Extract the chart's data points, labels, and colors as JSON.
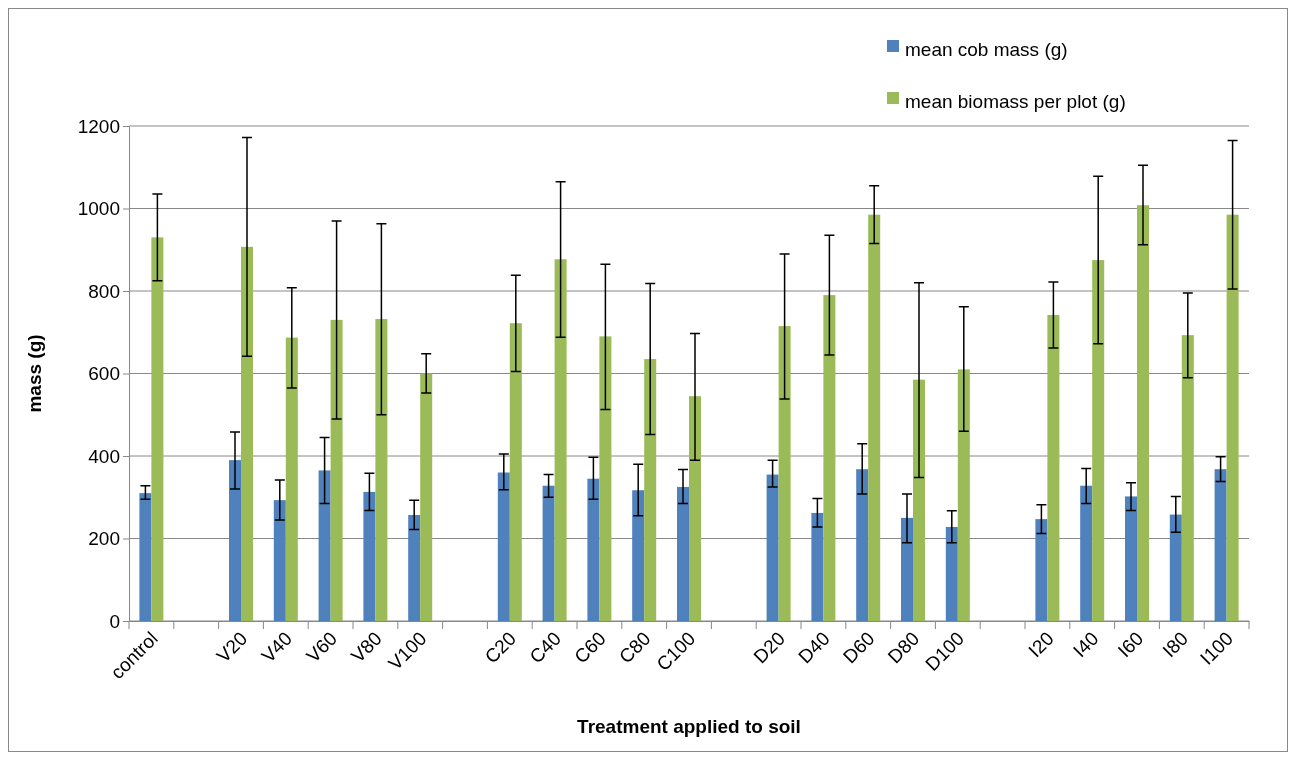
{
  "chart_data": {
    "type": "bar",
    "xlabel": "Treatment applied to soil",
    "ylabel": "mass (g)",
    "categories": [
      "control",
      null,
      "V20",
      "V40",
      "V60",
      "V80",
      "V100",
      null,
      "C20",
      "C40",
      "C60",
      "C80",
      "C100",
      null,
      "D20",
      "D40",
      "D60",
      "D80",
      "D100",
      null,
      "I20",
      "I40",
      "I60",
      "I80",
      "I100"
    ],
    "series": [
      {
        "name": "mean cob mass (g)",
        "color": "#4f81bd",
        "values": [
          310,
          null,
          390,
          293,
          365,
          313,
          257,
          null,
          360,
          328,
          345,
          317,
          325,
          null,
          355,
          262,
          368,
          250,
          228,
          null,
          247,
          328,
          302,
          258,
          368
        ],
        "errors": [
          [
            295,
            328
          ],
          null,
          [
            320,
            458
          ],
          [
            245,
            342
          ],
          [
            285,
            445
          ],
          [
            268,
            358
          ],
          [
            222,
            293
          ],
          null,
          [
            318,
            405
          ],
          [
            300,
            355
          ],
          [
            295,
            397
          ],
          [
            255,
            380
          ],
          [
            285,
            367
          ],
          null,
          [
            325,
            390
          ],
          [
            228,
            297
          ],
          [
            308,
            430
          ],
          [
            190,
            308
          ],
          [
            190,
            267
          ],
          null,
          [
            212,
            282
          ],
          [
            285,
            370
          ],
          [
            268,
            335
          ],
          [
            215,
            302
          ],
          [
            338,
            398
          ]
        ]
      },
      {
        "name": "mean biomass per plot (g)",
        "color": "#9bbb59",
        "values": [
          930,
          null,
          907,
          687,
          730,
          732,
          600,
          null,
          722,
          877,
          690,
          635,
          545,
          null,
          715,
          790,
          985,
          585,
          610,
          null,
          742,
          875,
          1008,
          693,
          985
        ],
        "errors": [
          [
            825,
            1035
          ],
          null,
          [
            642,
            1172
          ],
          [
            565,
            808
          ],
          [
            490,
            970
          ],
          [
            500,
            963
          ],
          [
            553,
            648
          ],
          null,
          [
            605,
            838
          ],
          [
            688,
            1065
          ],
          [
            513,
            865
          ],
          [
            452,
            818
          ],
          [
            390,
            697
          ],
          null,
          [
            538,
            890
          ],
          [
            645,
            935
          ],
          [
            915,
            1055
          ],
          [
            348,
            820
          ],
          [
            460,
            762
          ],
          null,
          [
            662,
            822
          ],
          [
            672,
            1078
          ],
          [
            912,
            1105
          ],
          [
            590,
            795
          ],
          [
            805,
            1165
          ]
        ]
      }
    ],
    "ylim": [
      0,
      1200
    ],
    "yticks": [
      0,
      200,
      400,
      600,
      800,
      1000,
      1200
    ],
    "grid": "y",
    "legend": "top right"
  }
}
